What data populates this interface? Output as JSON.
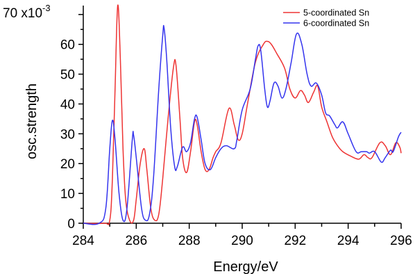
{
  "chart_data": {
    "type": "line",
    "title": "",
    "xlabel": "Energy/eV",
    "ylabel": "osc.strength",
    "y_multiplier_label": "70 x10",
    "y_multiplier_exp": "-3",
    "xlim": [
      284,
      296
    ],
    "ylim": [
      0,
      73
    ],
    "xticks": [
      284,
      286,
      288,
      290,
      292,
      294,
      296
    ],
    "xtick_labels": [
      "284",
      "286",
      "288",
      "290",
      "292",
      "294",
      "296"
    ],
    "yticks": [
      0,
      10,
      20,
      30,
      40,
      50,
      60
    ],
    "ytick_labels": [
      "0",
      "10",
      "20",
      "30",
      "40",
      "50",
      "60"
    ],
    "minor_xticks": [
      285,
      287,
      289,
      291,
      293,
      295
    ],
    "grid": false,
    "legend_position": "top-right",
    "series": [
      {
        "name": "5-coordinated Sn",
        "color": "#ee3333",
        "points": [
          [
            284.0,
            0
          ],
          [
            284.8,
            0
          ],
          [
            285.0,
            1
          ],
          [
            285.1,
            15
          ],
          [
            285.2,
            45
          ],
          [
            285.3,
            73
          ],
          [
            285.4,
            55
          ],
          [
            285.5,
            25
          ],
          [
            285.6,
            8
          ],
          [
            285.75,
            1
          ],
          [
            285.9,
            1
          ],
          [
            286.0,
            8
          ],
          [
            286.15,
            20
          ],
          [
            286.3,
            25
          ],
          [
            286.4,
            18
          ],
          [
            286.55,
            5
          ],
          [
            286.7,
            1
          ],
          [
            286.85,
            3
          ],
          [
            287.0,
            15
          ],
          [
            287.2,
            35
          ],
          [
            287.4,
            52
          ],
          [
            287.5,
            53
          ],
          [
            287.65,
            35
          ],
          [
            287.75,
            22
          ],
          [
            287.9,
            17
          ],
          [
            288.05,
            24
          ],
          [
            288.2,
            34
          ],
          [
            288.3,
            33
          ],
          [
            288.45,
            24
          ],
          [
            288.6,
            18
          ],
          [
            288.75,
            18
          ],
          [
            288.9,
            22
          ],
          [
            289.0,
            24
          ],
          [
            289.2,
            27
          ],
          [
            289.5,
            38.5
          ],
          [
            289.7,
            33
          ],
          [
            289.85,
            28
          ],
          [
            290.0,
            30
          ],
          [
            290.2,
            40
          ],
          [
            290.5,
            54
          ],
          [
            290.8,
            60
          ],
          [
            290.95,
            61
          ],
          [
            291.1,
            60
          ],
          [
            291.3,
            57
          ],
          [
            291.6,
            52
          ],
          [
            291.8,
            45
          ],
          [
            292.0,
            42
          ],
          [
            292.2,
            44.5
          ],
          [
            292.35,
            43
          ],
          [
            292.5,
            40.5
          ],
          [
            292.7,
            44
          ],
          [
            292.85,
            46
          ],
          [
            293.0,
            39
          ],
          [
            293.2,
            34
          ],
          [
            293.4,
            29
          ],
          [
            293.6,
            26
          ],
          [
            293.8,
            24
          ],
          [
            294.1,
            22.5
          ],
          [
            294.4,
            21.5
          ],
          [
            294.6,
            23
          ],
          [
            294.75,
            22
          ],
          [
            294.9,
            22
          ],
          [
            295.2,
            27
          ],
          [
            295.4,
            26
          ],
          [
            295.6,
            23
          ],
          [
            295.8,
            27
          ],
          [
            295.95,
            25.5
          ],
          [
            296.0,
            23.5
          ]
        ]
      },
      {
        "name": "6-coordinated Sn",
        "color": "#3333ee",
        "points": [
          [
            284.0,
            0
          ],
          [
            284.6,
            0
          ],
          [
            284.85,
            5
          ],
          [
            285.0,
            25
          ],
          [
            285.1,
            34.5
          ],
          [
            285.2,
            28
          ],
          [
            285.35,
            10
          ],
          [
            285.5,
            1
          ],
          [
            285.65,
            5
          ],
          [
            285.85,
            28
          ],
          [
            285.9,
            29.5
          ],
          [
            286.0,
            22
          ],
          [
            286.2,
            5
          ],
          [
            286.35,
            1
          ],
          [
            286.5,
            3
          ],
          [
            286.65,
            15
          ],
          [
            286.85,
            45
          ],
          [
            287.0,
            63
          ],
          [
            287.05,
            65.5
          ],
          [
            287.15,
            55
          ],
          [
            287.3,
            32
          ],
          [
            287.45,
            19
          ],
          [
            287.55,
            19
          ],
          [
            287.75,
            25.5
          ],
          [
            287.9,
            24
          ],
          [
            288.05,
            27
          ],
          [
            288.2,
            35
          ],
          [
            288.3,
            35.5
          ],
          [
            288.45,
            28
          ],
          [
            288.6,
            20
          ],
          [
            288.8,
            18
          ],
          [
            289.0,
            22
          ],
          [
            289.2,
            25
          ],
          [
            289.4,
            26
          ],
          [
            289.7,
            25
          ],
          [
            289.8,
            28
          ],
          [
            290.0,
            38
          ],
          [
            290.3,
            45
          ],
          [
            290.5,
            55
          ],
          [
            290.6,
            59.5
          ],
          [
            290.7,
            58
          ],
          [
            290.85,
            45
          ],
          [
            290.95,
            39
          ],
          [
            291.05,
            41
          ],
          [
            291.2,
            47
          ],
          [
            291.35,
            46
          ],
          [
            291.5,
            42
          ],
          [
            291.65,
            45
          ],
          [
            291.85,
            54
          ],
          [
            292.05,
            63.5
          ],
          [
            292.25,
            60
          ],
          [
            292.45,
            50
          ],
          [
            292.6,
            46
          ],
          [
            292.8,
            47
          ],
          [
            293.0,
            43
          ],
          [
            293.15,
            37
          ],
          [
            293.3,
            36
          ],
          [
            293.5,
            33
          ],
          [
            293.6,
            32
          ],
          [
            293.8,
            34
          ],
          [
            294.0,
            30
          ],
          [
            294.3,
            24
          ],
          [
            294.5,
            24
          ],
          [
            294.7,
            24
          ],
          [
            294.8,
            23.5
          ],
          [
            295.0,
            24
          ],
          [
            295.25,
            20.5
          ],
          [
            295.4,
            22
          ],
          [
            295.6,
            24.5
          ],
          [
            295.7,
            24
          ],
          [
            295.9,
            29
          ],
          [
            296.0,
            30.5
          ]
        ]
      }
    ]
  }
}
